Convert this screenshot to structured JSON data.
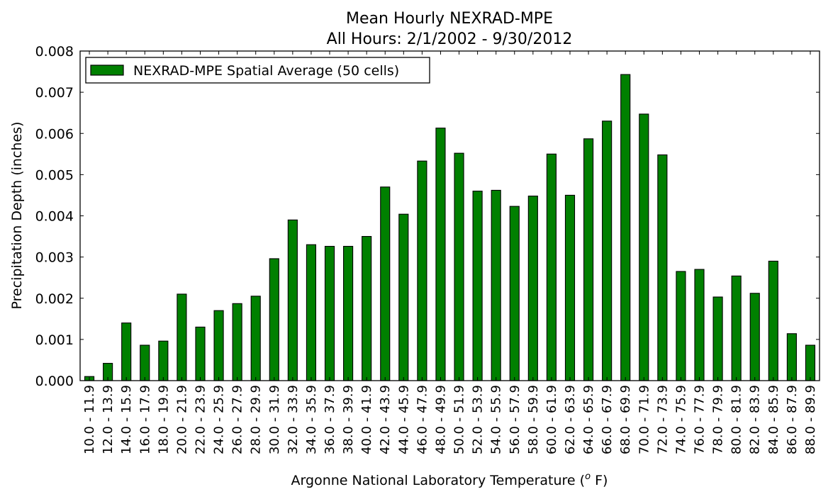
{
  "chart_data": {
    "type": "bar",
    "title": "Mean Hourly NEXRAD-MPE",
    "subtitle": "All Hours: 2/1/2002 - 9/30/2012",
    "xlabel": "Argonne National Laboratory Temperature (",
    "xlabel_sup": "o",
    "xlabel_end": " F)",
    "ylabel": "Precipitation Depth (inches)",
    "ylim": [
      0,
      0.008
    ],
    "yticks": [
      "0.000",
      "0.001",
      "0.002",
      "0.003",
      "0.004",
      "0.005",
      "0.006",
      "0.007",
      "0.008"
    ],
    "legend": {
      "label": "NEXRAD-MPE Spatial Average (50 cells)",
      "position": "top-left"
    },
    "bar_color": "#008000",
    "grid": false,
    "categories": [
      "10.0 - 11.9",
      "12.0 - 13.9",
      "14.0 - 15.9",
      "16.0 - 17.9",
      "18.0 - 19.9",
      "20.0 - 21.9",
      "22.0 - 23.9",
      "24.0 - 25.9",
      "26.0 - 27.9",
      "28.0 - 29.9",
      "30.0 - 31.9",
      "32.0 - 33.9",
      "34.0 - 35.9",
      "36.0 - 37.9",
      "38.0 - 39.9",
      "40.0 - 41.9",
      "42.0 - 43.9",
      "44.0 - 45.9",
      "46.0 - 47.9",
      "48.0 - 49.9",
      "50.0 - 51.9",
      "52.0 - 53.9",
      "54.0 - 55.9",
      "56.0 - 57.9",
      "58.0 - 59.9",
      "60.0 - 61.9",
      "62.0 - 63.9",
      "64.0 - 65.9",
      "66.0 - 67.9",
      "68.0 - 69.9",
      "70.0 - 71.9",
      "72.0 - 73.9",
      "74.0 - 75.9",
      "76.0 - 77.9",
      "78.0 - 79.9",
      "80.0 - 81.9",
      "82.0 - 83.9",
      "84.0 - 85.9",
      "86.0 - 87.9",
      "88.0 - 89.9"
    ],
    "values": [
      0.0001,
      0.00042,
      0.0014,
      0.00086,
      0.00096,
      0.0021,
      0.0013,
      0.0017,
      0.00187,
      0.00205,
      0.00296,
      0.0039,
      0.0033,
      0.00326,
      0.00326,
      0.0035,
      0.0047,
      0.00404,
      0.00533,
      0.00613,
      0.00552,
      0.0046,
      0.00462,
      0.00423,
      0.00448,
      0.0055,
      0.0045,
      0.00587,
      0.0063,
      0.00743,
      0.00647,
      0.00548,
      0.00265,
      0.0027,
      0.00203,
      0.00254,
      0.00212,
      0.0029,
      0.00114,
      0.00086
    ]
  }
}
